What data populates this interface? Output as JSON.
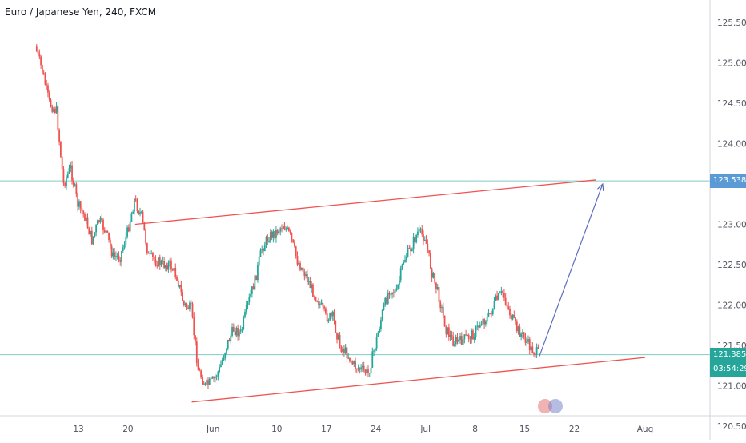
{
  "header": {
    "title": "Euro / Japanese Yen, 240, FXCM"
  },
  "price_tags": {
    "resistance": "123.538",
    "current": "121.385",
    "countdown": "03:54:29"
  },
  "colors": {
    "up": "#26a69a",
    "down": "#ef5350",
    "trendline": "#ef5350",
    "horizontal": "#80cbc4",
    "resistance_tag": "#5b9bd5",
    "current_tag": "#26a69a",
    "arrow": "#5c6bc0",
    "axis_text": "#50535e",
    "grid": "#ffffff"
  },
  "chart_data": {
    "type": "candlestick",
    "symbol": "Euro / Japanese Yen",
    "timeframe": "240",
    "source": "FXCM",
    "x_tick_labels": [
      "13",
      "20",
      "Jun",
      "10",
      "17",
      "24",
      "Jul",
      "8",
      "15",
      "22",
      "Aug"
    ],
    "y_tick_labels": [
      "125.500",
      "125.000",
      "124.500",
      "124.000",
      "123.500",
      "123.000",
      "122.500",
      "122.000",
      "121.500",
      "121.000",
      "120.500"
    ],
    "y_range": [
      120.4,
      125.7
    ],
    "grid": false,
    "price_path": [
      {
        "date": "May 7",
        "price": 125.2
      },
      {
        "date": "May 8",
        "price": 124.9
      },
      {
        "date": "May 9",
        "price": 124.5
      },
      {
        "date": "May 10",
        "price": 124.4
      },
      {
        "date": "May 11",
        "price": 123.5
      },
      {
        "date": "May 12",
        "price": 123.7
      },
      {
        "date": "May 13",
        "price": 123.25
      },
      {
        "date": "May 14",
        "price": 123.1
      },
      {
        "date": "May 15",
        "price": 122.8
      },
      {
        "date": "May 16",
        "price": 123.05
      },
      {
        "date": "May 17",
        "price": 122.9
      },
      {
        "date": "May 18",
        "price": 122.6
      },
      {
        "date": "May 19",
        "price": 122.6
      },
      {
        "date": "May 20",
        "price": 122.9
      },
      {
        "date": "May 21",
        "price": 123.3
      },
      {
        "date": "May 22",
        "price": 123.1
      },
      {
        "date": "May 23",
        "price": 122.6
      },
      {
        "date": "May 24",
        "price": 122.55
      },
      {
        "date": "May 25",
        "price": 122.5
      },
      {
        "date": "May 26",
        "price": 122.5
      },
      {
        "date": "May 27",
        "price": 122.35
      },
      {
        "date": "May 28",
        "price": 122.0
      },
      {
        "date": "May 29",
        "price": 121.95
      },
      {
        "date": "May 30",
        "price": 121.2
      },
      {
        "date": "May 31",
        "price": 121.0
      },
      {
        "date": "Jun 1",
        "price": 121.05
      },
      {
        "date": "Jun 2",
        "price": 121.2
      },
      {
        "date": "Jun 3",
        "price": 121.5
      },
      {
        "date": "Jun 4",
        "price": 121.7
      },
      {
        "date": "Jun 5",
        "price": 121.65
      },
      {
        "date": "Jun 6",
        "price": 122.0
      },
      {
        "date": "Jun 7",
        "price": 122.3
      },
      {
        "date": "Jun 8",
        "price": 122.7
      },
      {
        "date": "Jun 9",
        "price": 122.85
      },
      {
        "date": "Jun 10",
        "price": 122.9
      },
      {
        "date": "Jun 11",
        "price": 123.0
      },
      {
        "date": "Jun 12",
        "price": 122.85
      },
      {
        "date": "Jun 13",
        "price": 122.55
      },
      {
        "date": "Jun 14",
        "price": 122.4
      },
      {
        "date": "Jun 15",
        "price": 122.2
      },
      {
        "date": "Jun 16",
        "price": 122.05
      },
      {
        "date": "Jun 17",
        "price": 121.85
      },
      {
        "date": "Jun 18",
        "price": 121.85
      },
      {
        "date": "Jun 19",
        "price": 121.5
      },
      {
        "date": "Jun 20",
        "price": 121.4
      },
      {
        "date": "Jun 21",
        "price": 121.25
      },
      {
        "date": "Jun 22",
        "price": 121.2
      },
      {
        "date": "Jun 23",
        "price": 121.15
      },
      {
        "date": "Jun 24",
        "price": 121.5
      },
      {
        "date": "Jun 25",
        "price": 121.9
      },
      {
        "date": "Jun 26",
        "price": 122.2
      },
      {
        "date": "Jun 27",
        "price": 122.15
      },
      {
        "date": "Jun 28",
        "price": 122.55
      },
      {
        "date": "Jun 29",
        "price": 122.7
      },
      {
        "date": "Jun 30",
        "price": 122.9
      },
      {
        "date": "Jul 1",
        "price": 122.85
      },
      {
        "date": "Jul 2",
        "price": 122.4
      },
      {
        "date": "Jul 3",
        "price": 122.1
      },
      {
        "date": "Jul 4",
        "price": 121.7
      },
      {
        "date": "Jul 5",
        "price": 121.55
      },
      {
        "date": "Jul 6",
        "price": 121.55
      },
      {
        "date": "Jul 7",
        "price": 121.6
      },
      {
        "date": "Jul 8",
        "price": 121.65
      },
      {
        "date": "Jul 9",
        "price": 121.8
      },
      {
        "date": "Jul 10",
        "price": 121.85
      },
      {
        "date": "Jul 11",
        "price": 122.05
      },
      {
        "date": "Jul 12",
        "price": 122.15
      },
      {
        "date": "Jul 13",
        "price": 121.9
      },
      {
        "date": "Jul 14",
        "price": 121.7
      },
      {
        "date": "Jul 15",
        "price": 121.6
      },
      {
        "date": "Jul 16",
        "price": 121.45
      },
      {
        "date": "Jul 17",
        "price": 121.4
      }
    ],
    "drawings": {
      "horizontal_lines": [
        123.538,
        121.385
      ],
      "upper_trendline": [
        {
          "date": "May 21",
          "price": 123.0
        },
        {
          "date": "Jul 25",
          "price": 123.55
        }
      ],
      "lower_trendline": [
        {
          "date": "May 29",
          "price": 120.8
        },
        {
          "date": "Aug 1",
          "price": 121.35
        }
      ],
      "projection_arrow": [
        {
          "date": "Jul 17",
          "price": 121.35
        },
        {
          "date": "Jul 26",
          "price": 123.5
        }
      ]
    }
  }
}
